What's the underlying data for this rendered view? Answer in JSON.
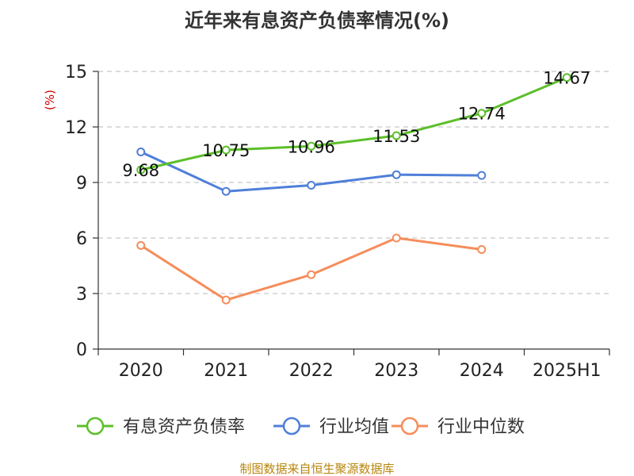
{
  "chart_data": {
    "type": "line",
    "title": "近年来有息资产负债率情况(%)",
    "ylabel": "(%)",
    "xlabel": "",
    "categories": [
      "2020",
      "2021",
      "2022",
      "2023",
      "2024",
      "2025H1"
    ],
    "ylim": [
      0,
      15
    ],
    "yticks": [
      0,
      3,
      6,
      9,
      12,
      15
    ],
    "grid": true,
    "legend_position": "bottom",
    "series": [
      {
        "name": "有息资产负债率",
        "color": "#5cbf2a",
        "values": [
          9.68,
          10.75,
          10.96,
          11.53,
          12.74,
          14.67
        ],
        "labels": [
          "9.68",
          "10.75",
          "10.96",
          "11.53",
          "12.74",
          "14.67"
        ]
      },
      {
        "name": "行业均值",
        "color": "#4f7fd9",
        "values": [
          10.65,
          8.52,
          8.85,
          9.42,
          9.38,
          null
        ]
      },
      {
        "name": "行业中位数",
        "color": "#f58d5b",
        "values": [
          5.6,
          2.65,
          4.02,
          6.0,
          5.38,
          null
        ]
      }
    ],
    "source": "制图数据来自恒生聚源数据库"
  }
}
